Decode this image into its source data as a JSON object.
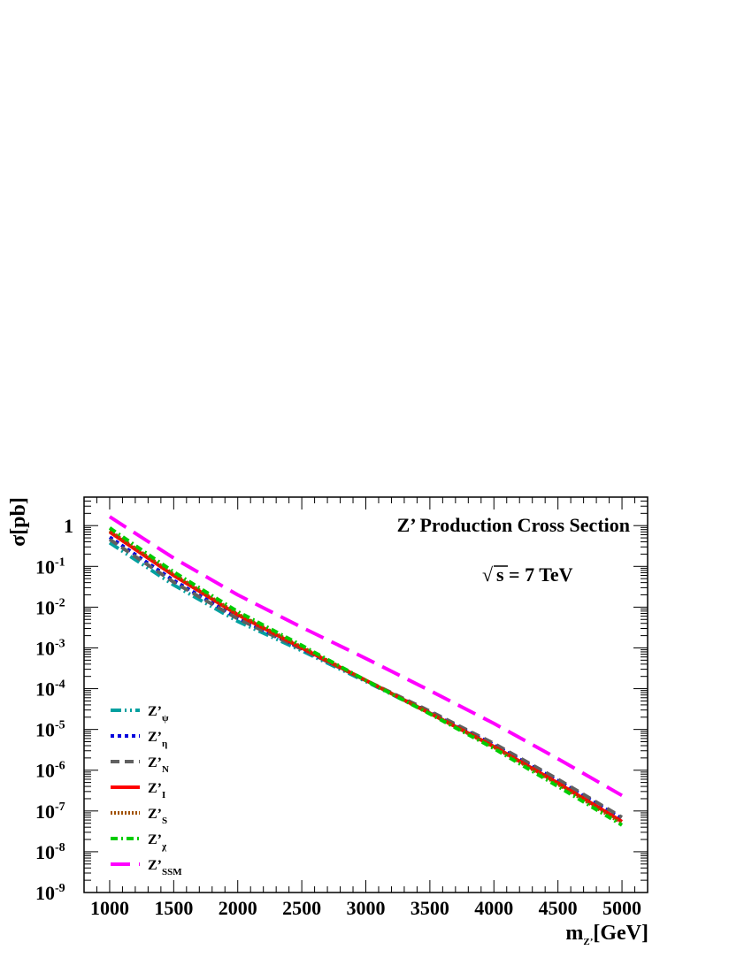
{
  "chart_data": {
    "type": "line",
    "title": "Z’ Production Cross Section",
    "annotation": "s = 7 TeV",
    "annotation_prefix": "√",
    "xlabel": {
      "main": "m",
      "sub": "Z’",
      "rest": "[GeV]"
    },
    "ylabel": "σ[pb]",
    "xlim": [
      800,
      5200
    ],
    "ylim": [
      1e-09,
      5
    ],
    "yscale": "log",
    "x_ticks": [
      1000,
      1500,
      2000,
      2500,
      3000,
      3500,
      4000,
      4500,
      5000
    ],
    "y_ticks": [
      {
        "value": 1e-09,
        "base": "10",
        "exp": "-9"
      },
      {
        "value": 1e-08,
        "base": "10",
        "exp": "-8"
      },
      {
        "value": 1e-07,
        "base": "10",
        "exp": "-7"
      },
      {
        "value": 1e-06,
        "base": "10",
        "exp": "-6"
      },
      {
        "value": 1e-05,
        "base": "10",
        "exp": "-5"
      },
      {
        "value": 0.0001,
        "base": "10",
        "exp": "-4"
      },
      {
        "value": 0.001,
        "base": "10",
        "exp": "-3"
      },
      {
        "value": 0.01,
        "base": "10",
        "exp": "-2"
      },
      {
        "value": 0.1,
        "base": "10",
        "exp": "-1"
      },
      {
        "value": 1,
        "base": "1",
        "exp": ""
      }
    ],
    "legend_position": "bottom-left",
    "grid": false,
    "x": [
      1000,
      1500,
      2000,
      2500,
      3000,
      3500,
      4000,
      4500,
      5000
    ],
    "series": [
      {
        "name": "Z’",
        "sub": "ψ",
        "color": "#00a0a0",
        "dash": "12,4,2,4,2,4",
        "width": 4,
        "values": [
          0.38,
          0.035,
          0.0045,
          0.00085,
          0.00015,
          2.5e-05,
          3.8e-06,
          4.8e-07,
          5.5e-08
        ]
      },
      {
        "name": "Z’",
        "sub": "η",
        "color": "#0000dd",
        "dash": "4,4",
        "width": 4,
        "values": [
          0.52,
          0.045,
          0.0055,
          0.00095,
          0.00016,
          2.6e-05,
          4.2e-06,
          5.5e-07,
          6.5e-08
        ]
      },
      {
        "name": "Z’",
        "sub": "N",
        "color": "#606060",
        "dash": "10,6",
        "width": 4,
        "values": [
          0.46,
          0.041,
          0.0052,
          0.00093,
          0.00016,
          2.8e-05,
          4.5e-06,
          6e-07,
          7e-08
        ]
      },
      {
        "name": "Z’",
        "sub": "I",
        "color": "#ff0000",
        "dash": "",
        "width": 4,
        "values": [
          0.7,
          0.06,
          0.0065,
          0.001,
          0.00016,
          2.5e-05,
          3.8e-06,
          4.8e-07,
          5.5e-08
        ]
      },
      {
        "name": "Z’",
        "sub": "S",
        "color": "#a05000",
        "dash": "2,2",
        "width": 4,
        "values": [
          0.75,
          0.064,
          0.0068,
          0.00105,
          0.00016,
          2.5e-05,
          3.7e-06,
          4.5e-07,
          5e-08
        ]
      },
      {
        "name": "Z’",
        "sub": "χ",
        "color": "#00cc00",
        "dash": "8,4,2,4",
        "width": 4,
        "values": [
          0.88,
          0.073,
          0.0078,
          0.00115,
          0.00016,
          2.4e-05,
          3.4e-06,
          4e-07,
          4.5e-08
        ]
      },
      {
        "name": "Z’",
        "sub": "SSM",
        "color": "#ff00ff",
        "dash": "22,10",
        "width": 4,
        "values": [
          1.65,
          0.16,
          0.02,
          0.0032,
          0.00055,
          9e-05,
          1.4e-05,
          1.9e-06,
          2.4e-07
        ]
      }
    ]
  }
}
